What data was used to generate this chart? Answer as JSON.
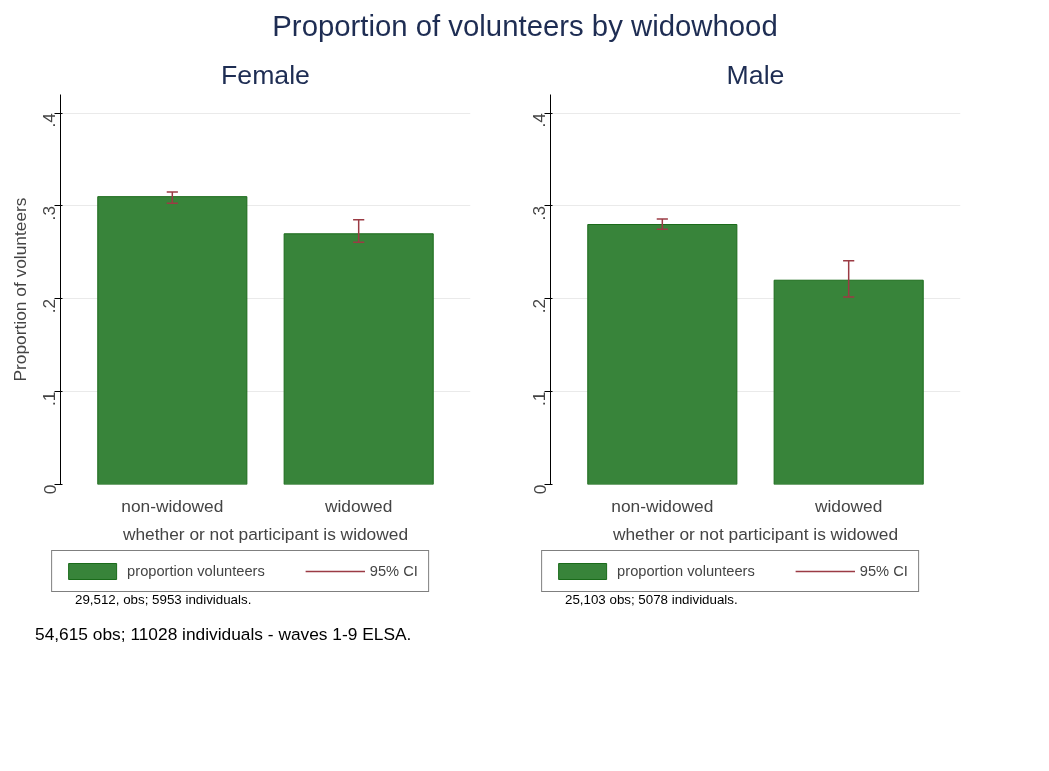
{
  "chart_data": [
    {
      "type": "bar",
      "title": "Proportion of volunteers by widowhood",
      "subtitle": "Female",
      "categories": [
        "non-widowed",
        "widowed"
      ],
      "xlabel": "whether or not participant is widowed",
      "ylabel": "Proportion of volunteers",
      "series": [
        {
          "name": "proportion volunteers",
          "color": "#38843a",
          "values": [
            0.31,
            0.27
          ],
          "errors": [
            [
              0.303,
              0.315
            ],
            [
              0.261,
              0.285
            ]
          ]
        }
      ],
      "ylim": [
        0,
        0.42
      ],
      "yticks": [
        0,
        {
          "value": 0.1,
          "label": ".1"
        },
        {
          "value": 0.2,
          "label": ".2"
        },
        {
          "value": 0.3,
          "label": ".3"
        },
        {
          "value": 0.4,
          "label": ".4"
        }
      ],
      "grid": "y",
      "legend": "bottom",
      "annotations": [
        "95% CI",
        "29,512, obs; 5953 individuals.",
        "54,615 obs; 11028 individuals - waves 1-9 ELSA."
      ]
    },
    {
      "type": "bar",
      "subtitle": "Male",
      "categories": [
        "non-widowed",
        "widowed"
      ],
      "xlabel": "whether or not participant is widowed",
      "series": [
        {
          "name": "proportion volunteers",
          "color": "#38843a",
          "values": [
            0.28,
            0.22
          ],
          "errors": [
            [
              0.275,
              0.286
            ],
            [
              0.202,
              0.241
            ]
          ]
        }
      ],
      "ylim": [
        0,
        0.42
      ],
      "yticks": [
        0,
        {
          "value": 0.1,
          "label": ".1"
        },
        {
          "value": 0.2,
          "label": ".2"
        },
        {
          "value": 0.3,
          "label": ".3"
        },
        {
          "value": 0.4,
          "label": ".4"
        }
      ],
      "grid": "y",
      "legend": "bottom",
      "annotations": [
        "95% CI",
        "25,103 obs; 5078 individuals."
      ]
    }
  ]
}
